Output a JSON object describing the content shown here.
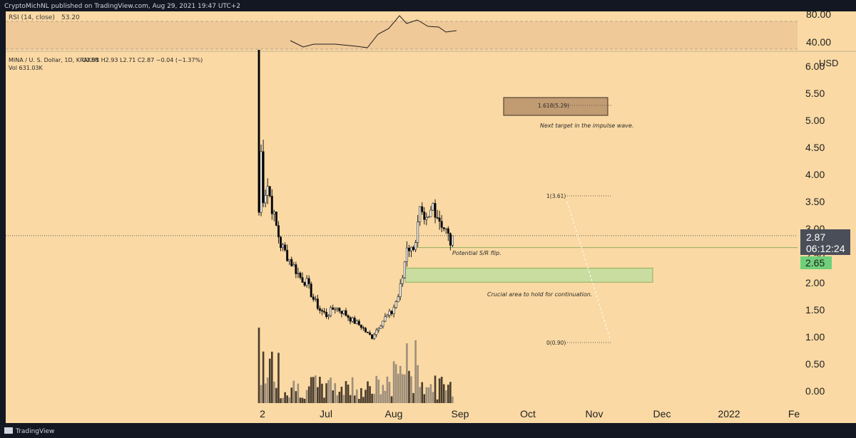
{
  "header": {
    "text": "CryptoMichNL published on TradingView.com, Aug 29, 2021 19:47 UTC+2"
  },
  "rsi": {
    "label": "RSI (14, close)",
    "value": "53.20",
    "axis_ticks": [
      "80.00",
      "40.00"
    ]
  },
  "legend": {
    "symbol": "MINA / U. S. Dollar, 1D, KRAKEN",
    "ohlc": "O2.91  H2.93  L2.71  C2.87  −0.04 (−1.37%)",
    "volume": "Vol  631.03K"
  },
  "price_axis": {
    "currency": "USD",
    "ticks": [
      "6.00",
      "5.50",
      "5.00",
      "4.50",
      "4.00",
      "3.50",
      "3.00",
      "2.50",
      "2.00",
      "1.50",
      "1.00",
      "0.50",
      "0.00"
    ],
    "last_price": "2.87",
    "countdown": "06:12:24",
    "level_label": "2.65"
  },
  "time_axis": {
    "ticks": [
      "2",
      "Jul",
      "Aug",
      "Sep",
      "Oct",
      "Nov",
      "Dec",
      "2022",
      "Fe"
    ]
  },
  "annotations": {
    "fib_1618": "1.618(5.29)",
    "fib_1": "1(3.61)",
    "fib_0": "0(0.90)",
    "next_target": "Next target in the impulse wave.",
    "sr_flip": "Potential S/R flip.",
    "crucial_area": "Crucial area to hold for continuation."
  },
  "footer": {
    "brand": "TradingView"
  },
  "colors": {
    "background": "#FAD9A4",
    "chrome": "#131722",
    "up_candle": "#FFFFFF",
    "down_candle": "#000000",
    "volume_up": "#9E8E7A",
    "volume_down": "#4A3C2C",
    "zone_green": "#C9DDA0",
    "zone_border": "#8FAE5A",
    "level_green": "#6FCF7A",
    "last_price_box": "#4A4E58",
    "fib_box": "#C19B72"
  },
  "chart_data": {
    "type": "candlestick",
    "title": "MINA / U. S. Dollar, 1D, KRAKEN",
    "ylabel": "USD",
    "ylim": [
      -0.2,
      6.3
    ],
    "x_ticks": [
      "2",
      "Jul",
      "Aug",
      "Sep",
      "Oct",
      "Nov",
      "Dec",
      "2022",
      "Fe"
    ],
    "price_path": [
      {
        "date": "2021-06-01",
        "close": 3.3
      },
      {
        "date": "2021-06-02",
        "close": 4.4
      },
      {
        "date": "2021-06-03",
        "close": 3.6
      },
      {
        "date": "2021-06-05",
        "close": 3.8
      },
      {
        "date": "2021-06-08",
        "close": 3.2
      },
      {
        "date": "2021-06-11",
        "close": 2.7
      },
      {
        "date": "2021-06-14",
        "close": 2.5
      },
      {
        "date": "2021-06-17",
        "close": 2.3
      },
      {
        "date": "2021-06-20",
        "close": 2.1
      },
      {
        "date": "2021-06-23",
        "close": 2.0
      },
      {
        "date": "2021-06-26",
        "close": 1.7
      },
      {
        "date": "2021-06-29",
        "close": 1.5
      },
      {
        "date": "2021-07-02",
        "close": 1.4
      },
      {
        "date": "2021-07-06",
        "close": 1.55
      },
      {
        "date": "2021-07-10",
        "close": 1.45
      },
      {
        "date": "2021-07-14",
        "close": 1.3
      },
      {
        "date": "2021-07-18",
        "close": 1.2
      },
      {
        "date": "2021-07-21",
        "close": 1.05
      },
      {
        "date": "2021-07-23",
        "close": 1.0
      },
      {
        "date": "2021-07-26",
        "close": 1.2
      },
      {
        "date": "2021-07-29",
        "close": 1.35
      },
      {
        "date": "2021-08-01",
        "close": 1.45
      },
      {
        "date": "2021-08-04",
        "close": 1.75
      },
      {
        "date": "2021-08-06",
        "close": 2.1
      },
      {
        "date": "2021-08-08",
        "close": 2.7
      },
      {
        "date": "2021-08-10",
        "close": 2.6
      },
      {
        "date": "2021-08-12",
        "close": 2.8
      },
      {
        "date": "2021-08-14",
        "close": 3.3
      },
      {
        "date": "2021-08-16",
        "close": 3.05
      },
      {
        "date": "2021-08-18",
        "close": 3.15
      },
      {
        "date": "2021-08-20",
        "close": 3.45
      },
      {
        "date": "2021-08-22",
        "close": 3.25
      },
      {
        "date": "2021-08-24",
        "close": 3.1
      },
      {
        "date": "2021-08-26",
        "close": 2.95
      },
      {
        "date": "2021-08-28",
        "close": 2.75
      },
      {
        "date": "2021-08-29",
        "close": 2.87
      }
    ],
    "horizontal_levels": [
      {
        "label": "last",
        "value": 2.87
      },
      {
        "label": "S/R flip",
        "value": 2.65
      }
    ],
    "zones": [
      {
        "name": "Crucial area",
        "low": 2.01,
        "high": 2.27
      }
    ],
    "fibonacci": [
      {
        "label": "0",
        "value": 0.9
      },
      {
        "label": "1",
        "value": 3.61
      },
      {
        "label": "1.618",
        "value": 5.29
      }
    ],
    "rsi": {
      "current": 53.2,
      "range": [
        20,
        80
      ]
    }
  }
}
